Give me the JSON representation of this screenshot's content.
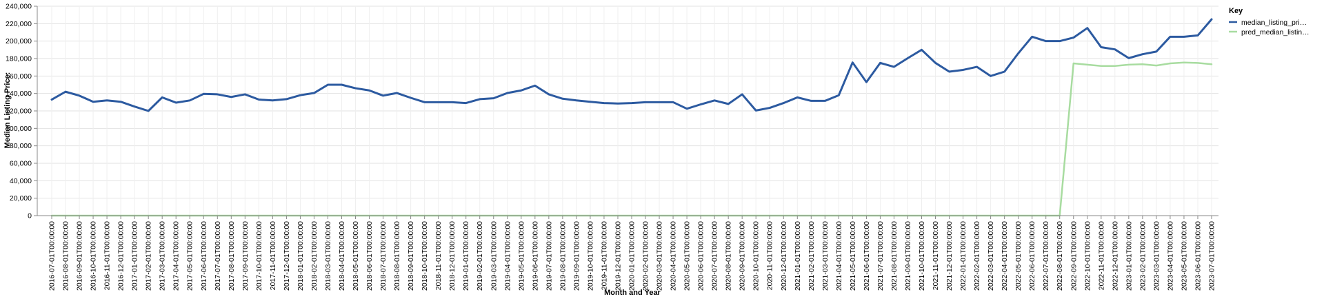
{
  "chart_data": {
    "type": "line",
    "title": "",
    "xlabel": "Month and Year",
    "ylabel": "Median Listing Price:",
    "ylim": [
      0,
      240000
    ],
    "y_ticks": [
      0,
      20000,
      40000,
      60000,
      80000,
      100000,
      120000,
      140000,
      160000,
      180000,
      200000,
      220000,
      240000
    ],
    "y_tick_labels": [
      "0",
      "20,000",
      "40,000",
      "60,000",
      "80,000",
      "100,000",
      "120,000",
      "140,000",
      "160,000",
      "180,000",
      "200,000",
      "220,000",
      "240,000"
    ],
    "grid": true,
    "legend_position": "right",
    "legend_title": "Key",
    "x": [
      "2016-07-01T00:00:00",
      "2016-08-01T00:00:00",
      "2016-09-01T00:00:00",
      "2016-10-01T00:00:00",
      "2016-11-01T00:00:00",
      "2016-12-01T00:00:00",
      "2017-01-01T00:00:00",
      "2017-02-01T00:00:00",
      "2017-03-01T00:00:00",
      "2017-04-01T00:00:00",
      "2017-05-01T00:00:00",
      "2017-06-01T00:00:00",
      "2017-07-01T00:00:00",
      "2017-08-01T00:00:00",
      "2017-09-01T00:00:00",
      "2017-10-01T00:00:00",
      "2017-11-01T00:00:00",
      "2017-12-01T00:00:00",
      "2018-01-01T00:00:00",
      "2018-02-01T00:00:00",
      "2018-03-01T00:00:00",
      "2018-04-01T00:00:00",
      "2018-05-01T00:00:00",
      "2018-06-01T00:00:00",
      "2018-07-01T00:00:00",
      "2018-08-01T00:00:00",
      "2018-09-01T00:00:00",
      "2018-10-01T00:00:00",
      "2018-11-01T00:00:00",
      "2018-12-01T00:00:00",
      "2019-01-01T00:00:00",
      "2019-02-01T00:00:00",
      "2019-03-01T00:00:00",
      "2019-04-01T00:00:00",
      "2019-05-01T00:00:00",
      "2019-06-01T00:00:00",
      "2019-07-01T00:00:00",
      "2019-08-01T00:00:00",
      "2019-09-01T00:00:00",
      "2019-10-01T00:00:00",
      "2019-11-01T00:00:00",
      "2019-12-01T00:00:00",
      "2020-01-01T00:00:00",
      "2020-02-01T00:00:00",
      "2020-03-01T00:00:00",
      "2020-04-01T00:00:00",
      "2020-05-01T00:00:00",
      "2020-06-01T00:00:00",
      "2020-07-01T00:00:00",
      "2020-08-01T00:00:00",
      "2020-09-01T00:00:00",
      "2020-10-01T00:00:00",
      "2020-11-01T00:00:00",
      "2020-12-01T00:00:00",
      "2021-01-01T00:00:00",
      "2021-02-01T00:00:00",
      "2021-03-01T00:00:00",
      "2021-04-01T00:00:00",
      "2021-05-01T00:00:00",
      "2021-06-01T00:00:00",
      "2021-07-01T00:00:00",
      "2021-08-01T00:00:00",
      "2021-09-01T00:00:00",
      "2021-10-01T00:00:00",
      "2021-11-01T00:00:00",
      "2021-12-01T00:00:00",
      "2022-01-01T00:00:00",
      "2022-02-01T00:00:00",
      "2022-03-01T00:00:00",
      "2022-04-01T00:00:00",
      "2022-05-01T00:00:00",
      "2022-06-01T00:00:00",
      "2022-07-01T00:00:00",
      "2022-08-01T00:00:00",
      "2022-09-01T00:00:00",
      "2022-10-01T00:00:00",
      "2022-11-01T00:00:00",
      "2022-12-01T00:00:00",
      "2023-01-01T00:00:00",
      "2023-02-01T00:00:00",
      "2023-03-01T00:00:00",
      "2023-04-01T00:00:00",
      "2023-05-01T00:00:00",
      "2023-06-01T00:00:00",
      "2023-07-01T00:00:00"
    ],
    "series": [
      {
        "name": "median_listing_pri…",
        "color": "#2c5aa0",
        "values": [
          133000,
          142000,
          137500,
          130500,
          132000,
          130500,
          125000,
          120000,
          135500,
          129500,
          132000,
          139500,
          139000,
          136000,
          139000,
          133000,
          132000,
          133500,
          138000,
          140500,
          150000,
          150000,
          146000,
          143500,
          137500,
          140500,
          135000,
          130000,
          130000,
          130000,
          129000,
          133500,
          134500,
          140500,
          143500,
          149000,
          139000,
          134000,
          132000,
          130500,
          129000,
          128500,
          129000,
          130000,
          130000,
          130000,
          122500,
          127500,
          132000,
          128000,
          139000,
          120500,
          123500,
          129000,
          135500,
          131500,
          131500,
          138000,
          175500,
          153000,
          175000,
          170500,
          180500,
          190000,
          175000,
          165000,
          167000,
          170500,
          160000,
          165000,
          186000,
          205000,
          200000,
          200000,
          204000,
          215000,
          193000,
          190500,
          180500,
          185000,
          188000,
          205000,
          205000,
          206500,
          225000
        ]
      },
      {
        "name": "pred_median_listin…",
        "color": "#a8dca0",
        "values": [
          0,
          0,
          0,
          0,
          0,
          0,
          0,
          0,
          0,
          0,
          0,
          0,
          0,
          0,
          0,
          0,
          0,
          0,
          0,
          0,
          0,
          0,
          0,
          0,
          0,
          0,
          0,
          0,
          0,
          0,
          0,
          0,
          0,
          0,
          0,
          0,
          0,
          0,
          0,
          0,
          0,
          0,
          0,
          0,
          0,
          0,
          0,
          0,
          0,
          0,
          0,
          0,
          0,
          0,
          0,
          0,
          0,
          0,
          0,
          0,
          0,
          0,
          0,
          0,
          0,
          0,
          0,
          0,
          0,
          0,
          0,
          0,
          0,
          0,
          174500,
          173000,
          171500,
          171500,
          173000,
          173500,
          172000,
          174500,
          175500,
          175000,
          173500
        ]
      }
    ]
  }
}
